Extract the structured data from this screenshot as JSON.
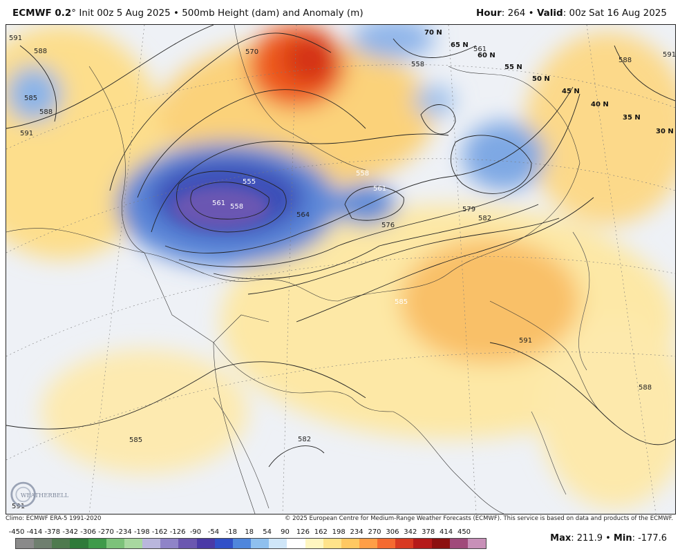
{
  "header": {
    "model": "ECMWF 0.2",
    "degree": "°",
    "init": " Init 00z 5 Aug 2025 • 500mb Height (dam) and Anomaly (m)",
    "hour_label": "Hour",
    "hour_value": ": 264 • ",
    "valid_label": "Valid",
    "valid_value": ": 00z Sat 16 Aug 2025"
  },
  "map": {
    "latitude_labels": [
      "70 N",
      "65 N",
      "60 N",
      "55 N",
      "50 N",
      "45 N",
      "40 N",
      "35 N",
      "30 N"
    ],
    "contour_labels": [
      "591",
      "588",
      "585",
      "588",
      "591",
      "555",
      "561",
      "558",
      "558",
      "561",
      "564",
      "576",
      "579",
      "582",
      "585",
      "570",
      "558",
      "561",
      "588",
      "591",
      "591",
      "585",
      "582",
      "588",
      "591"
    ],
    "logo_text": "WEATHERBELL"
  },
  "footer": {
    "climo": "Climo: ECMWF ERA-5 1991-2020",
    "copyright": "© 2025 European Centre for Medium-Range Weather Forecasts (ECMWF). This service is based on data and products of the ECMWF."
  },
  "colorbar": {
    "labels": [
      "-450",
      "-414",
      "-378",
      "-342",
      "-306",
      "-270",
      "-234",
      "-198",
      "-162",
      "-126",
      "-90",
      "-54",
      "-18",
      "18",
      "54",
      "90",
      "126",
      "162",
      "198",
      "234",
      "270",
      "306",
      "342",
      "378",
      "414",
      "450"
    ],
    "colors": [
      "#8a8a8a",
      "#6f7f6f",
      "#4f7a4f",
      "#2f7a3a",
      "#3f9a4a",
      "#7cc27a",
      "#a8d8a0",
      "#b9b6dc",
      "#8f84c8",
      "#6b57b0",
      "#4a3aa6",
      "#3150c8",
      "#4f86dc",
      "#8fc0ee",
      "#cfe6f8",
      "#ffffff",
      "#fff6c0",
      "#ffe38a",
      "#ffc862",
      "#ff9e46",
      "#f56a30",
      "#d83a22",
      "#b51a1a",
      "#8c1010",
      "#a04a7a",
      "#c890b8"
    ]
  },
  "stats": {
    "max_label": "Max",
    "max_value": ": 211.9 • ",
    "min_label": "Min",
    "min_value": ": -177.6"
  }
}
